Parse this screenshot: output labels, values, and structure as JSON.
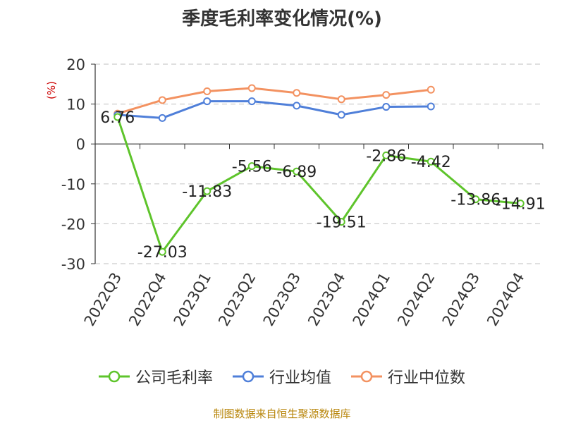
{
  "chart_data": {
    "type": "line",
    "title": "季度毛利率变化情况(%)",
    "ylabel": "(%)",
    "xlabel": "",
    "categories": [
      "2022Q3",
      "2022Q4",
      "2023Q1",
      "2023Q2",
      "2023Q3",
      "2023Q4",
      "2024Q1",
      "2024Q2",
      "2024Q3",
      "2024Q4"
    ],
    "ylim": [
      -30,
      20
    ],
    "yticks": [
      20,
      10,
      0,
      -10,
      -20,
      -30
    ],
    "grid": true,
    "legend_position": "bottom",
    "series": [
      {
        "name": "公司毛利率",
        "color": "#5ec42b",
        "values": [
          6.76,
          -27.03,
          -11.83,
          -5.56,
          -6.89,
          -19.51,
          -2.86,
          -4.42,
          -13.86,
          -14.91
        ],
        "labels": [
          "6.76",
          "-27.03",
          "-11.83",
          "-5.56",
          "-6.89",
          "-19.51",
          "-2.86",
          "-4.42",
          "-13.86",
          "-14.91"
        ]
      },
      {
        "name": "行业均值",
        "color": "#4f7fd9",
        "values": [
          7.3,
          6.5,
          10.7,
          10.7,
          9.6,
          7.3,
          9.3,
          9.4,
          null,
          null
        ]
      },
      {
        "name": "行业中位数",
        "color": "#f39261",
        "values": [
          7.6,
          11.0,
          13.2,
          14.0,
          12.8,
          11.2,
          12.3,
          13.6,
          null,
          null
        ]
      }
    ]
  },
  "footer": {
    "source": "制图数据来自恒生聚源数据库"
  }
}
